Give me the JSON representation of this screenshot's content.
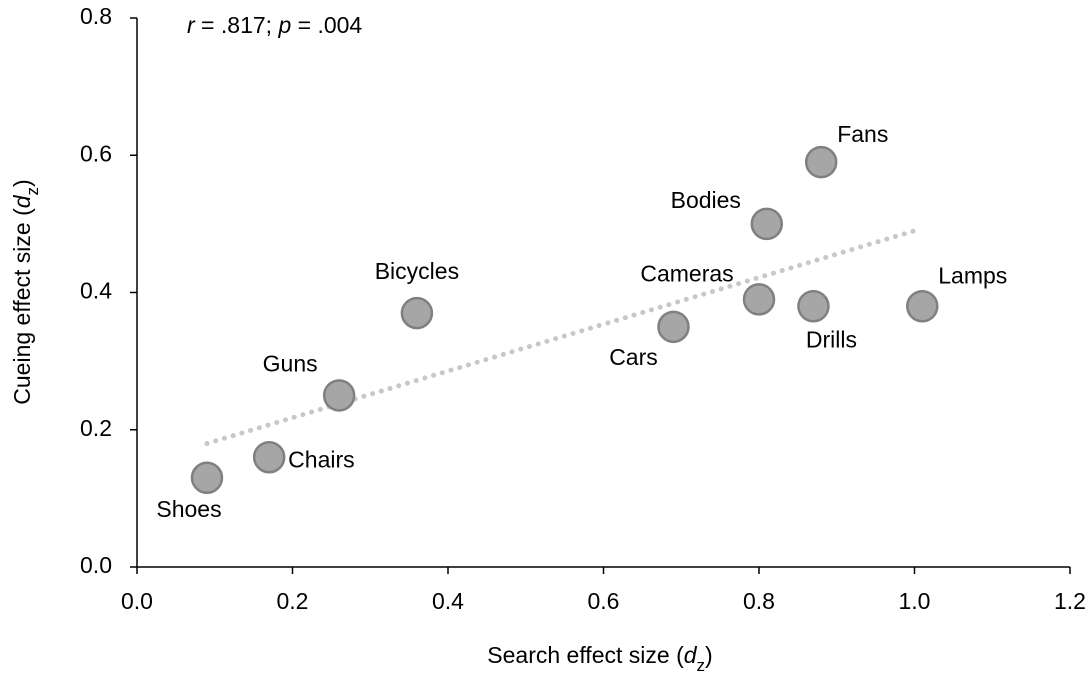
{
  "chart_data": {
    "type": "scatter",
    "annotation": [
      {
        "text": "r",
        "style": "italic"
      },
      {
        "text": " = .817; "
      },
      {
        "text": "p",
        "style": "italic"
      },
      {
        "text": " = .004"
      }
    ],
    "x_label": [
      {
        "text": "Search effect size ("
      },
      {
        "text": "d",
        "style": "italic"
      },
      {
        "text": "z",
        "style": "sub"
      },
      {
        "text": ")"
      }
    ],
    "y_label": [
      {
        "text": "Cueing effect size ("
      },
      {
        "text": "d",
        "style": "italic"
      },
      {
        "text": "z",
        "style": "sub"
      },
      {
        "text": ")"
      }
    ],
    "labels": [
      "Shoes",
      "Chairs",
      "Guns",
      "Bicycles",
      "Cars",
      "Cameras",
      "Drills",
      "Lamps",
      "Bodies",
      "Fans"
    ],
    "x": [
      0.09,
      0.17,
      0.26,
      0.36,
      0.69,
      0.8,
      0.87,
      1.01,
      0.81,
      0.88
    ],
    "values": [
      0.13,
      0.16,
      0.25,
      0.37,
      0.35,
      0.39,
      0.38,
      0.38,
      0.5,
      0.59
    ],
    "color": "#a6a6a6",
    "edge_color": "#808080",
    "trendline": {
      "x": [
        0.09,
        1.0
      ],
      "y": [
        0.18,
        0.49
      ],
      "color": "#c8c8c8"
    },
    "xlim": [
      0,
      1.2
    ],
    "xticks": [
      {
        "value": 0,
        "label": "0.0"
      },
      {
        "value": 0.2,
        "label": "0.2"
      },
      {
        "value": 0.4,
        "label": "0.4"
      },
      {
        "value": 0.6,
        "label": "0.6"
      },
      {
        "value": 0.8,
        "label": "0.8"
      },
      {
        "value": 1.0,
        "label": "1.0"
      },
      {
        "value": 1.2,
        "label": "1.2"
      }
    ],
    "ylim": [
      0,
      0.8
    ],
    "yticks": [
      {
        "value": 0,
        "label": "0.0"
      },
      {
        "value": 0.2,
        "label": "0.2"
      },
      {
        "value": 0.4,
        "label": "0.4"
      },
      {
        "value": 0.6,
        "label": "0.6"
      },
      {
        "value": 0.8,
        "label": "0.8"
      }
    ],
    "grid": false
  }
}
